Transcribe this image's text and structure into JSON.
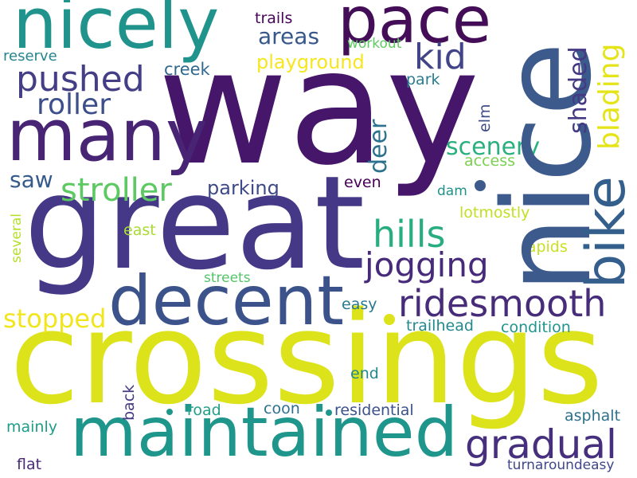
{
  "words": [
    {
      "text": "way",
      "color": "#46166a"
    },
    {
      "text": "crossings",
      "color": "#dde31a"
    },
    {
      "text": "great",
      "color": "#453886"
    },
    {
      "text": "nice",
      "color": "#3c5a8c"
    },
    {
      "text": "decent",
      "color": "#3b528b"
    },
    {
      "text": "maintained",
      "color": "#1f968b"
    },
    {
      "text": "many",
      "color": "#482475"
    },
    {
      "text": "nicely",
      "color": "#20938c"
    },
    {
      "text": "pace",
      "color": "#440d57"
    },
    {
      "text": "bike",
      "color": "#345f8d"
    },
    {
      "text": "ridesmooth",
      "color": "#472c7a"
    },
    {
      "text": "pushed",
      "color": "#433e85"
    },
    {
      "text": "kid",
      "color": "#414487"
    },
    {
      "text": "roller",
      "color": "#3c4f8a"
    },
    {
      "text": "hills",
      "color": "#27ad81"
    },
    {
      "text": "jogging",
      "color": "#472a7a"
    },
    {
      "text": "gradual",
      "color": "#46307e"
    },
    {
      "text": "stroller",
      "color": "#5dc962"
    },
    {
      "text": "stopped",
      "color": "#f1e51d"
    },
    {
      "text": "blading",
      "color": "#e5e419"
    },
    {
      "text": "shaded",
      "color": "#443983"
    },
    {
      "text": "areas",
      "color": "#38588c"
    },
    {
      "text": "scenery",
      "color": "#2ab07f"
    },
    {
      "text": "deer",
      "color": "#2c728e"
    },
    {
      "text": "playground",
      "color": "#f6e620"
    },
    {
      "text": "parking",
      "color": "#3e4989"
    },
    {
      "text": "saw",
      "color": "#375a8c"
    },
    {
      "text": "trails",
      "color": "#450457"
    },
    {
      "text": "workout",
      "color": "#5ec962"
    },
    {
      "text": "reserve",
      "color": "#25848e"
    },
    {
      "text": "creek",
      "color": "#31688e"
    },
    {
      "text": "park",
      "color": "#297b8e"
    },
    {
      "text": "elm",
      "color": "#3e4c8a"
    },
    {
      "text": "access",
      "color": "#7ad151"
    },
    {
      "text": "even",
      "color": "#440154"
    },
    {
      "text": "dam",
      "color": "#21918c"
    },
    {
      "text": "lotmostly",
      "color": "#c2df23"
    },
    {
      "text": "several",
      "color": "#b5de2b"
    },
    {
      "text": "east",
      "color": "#a8db34"
    },
    {
      "text": "rapids",
      "color": "#c8e020"
    },
    {
      "text": "streets",
      "color": "#52c569"
    },
    {
      "text": "easy",
      "color": "#2a788e"
    },
    {
      "text": "trailhead",
      "color": "#23898e"
    },
    {
      "text": "condition",
      "color": "#1f958b"
    },
    {
      "text": "back",
      "color": "#443a83"
    },
    {
      "text": "end",
      "color": "#24868e"
    },
    {
      "text": "road",
      "color": "#1fa188"
    },
    {
      "text": "coon",
      "color": "#2d708e"
    },
    {
      "text": "residential",
      "color": "#3b518b"
    },
    {
      "text": "asphalt",
      "color": "#2c718e"
    },
    {
      "text": "mainly",
      "color": "#1e9c89"
    },
    {
      "text": "flat",
      "color": "#482979"
    },
    {
      "text": "turnaroundeasy",
      "color": "#3f4788"
    }
  ],
  "dots": [
    {
      "color": "#3c5a8c"
    },
    {
      "color": "#dde31a"
    },
    {
      "color": "#1f968b"
    },
    {
      "color": "#1f968b"
    }
  ]
}
